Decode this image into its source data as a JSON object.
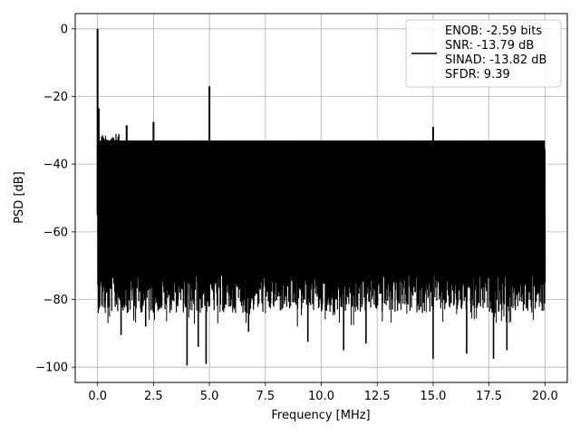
{
  "chart_data": {
    "type": "line",
    "title": "",
    "xlabel": "Frequency [MHz]",
    "ylabel": "PSD [dB]",
    "xlim": [
      -1,
      21
    ],
    "ylim": [
      -104.5,
      4.5
    ],
    "grid": true,
    "legend_position": "top-right",
    "x_ticks": [
      0,
      2.5,
      5,
      7.5,
      10,
      12.5,
      15,
      17.5,
      20
    ],
    "x_tick_labels": [
      "0.0",
      "2.5",
      "5.0",
      "7.5",
      "10.0",
      "12.5",
      "15.0",
      "17.5",
      "20.0"
    ],
    "y_ticks": [
      0,
      -20,
      -40,
      -60,
      -80,
      -100
    ],
    "y_tick_labels": [
      "0",
      "−20",
      "−40",
      "−60",
      "−80",
      "−100"
    ],
    "legend": {
      "line_color": "#000000",
      "entries": [
        "ENOB: -2.59 bits",
        "SNR: -13.79 dB",
        "SINAD: -13.82 dB",
        "SFDR: 9.39"
      ]
    },
    "series": [
      {
        "color": "#000000",
        "noise_band": {
          "x_range": [
            0,
            20
          ],
          "upper_envelope_db": -35,
          "lower_envelope_db": -80,
          "dense_fill_range_db": [
            -73,
            -33
          ]
        },
        "spikes": [
          {
            "x": 0.0,
            "y": 0.0
          },
          {
            "x": 0.05,
            "y": -23.5
          },
          {
            "x": 1.3,
            "y": -28.5
          },
          {
            "x": 2.5,
            "y": -27.5
          },
          {
            "x": 5.0,
            "y": -17.0
          },
          {
            "x": 15.0,
            "y": -29.0
          }
        ],
        "dips": [
          {
            "x": 1.05,
            "y": -90.5
          },
          {
            "x": 2.15,
            "y": -88.0
          },
          {
            "x": 4.0,
            "y": -99.5
          },
          {
            "x": 4.5,
            "y": -94.0
          },
          {
            "x": 4.85,
            "y": -99.0
          },
          {
            "x": 6.75,
            "y": -89.5
          },
          {
            "x": 9.4,
            "y": -92.5
          },
          {
            "x": 11.0,
            "y": -95.0
          },
          {
            "x": 12.0,
            "y": -93.0
          },
          {
            "x": 15.0,
            "y": -97.5
          },
          {
            "x": 16.5,
            "y": -96.0
          },
          {
            "x": 17.7,
            "y": -97.5
          },
          {
            "x": 18.3,
            "y": -95.0
          }
        ]
      }
    ]
  }
}
